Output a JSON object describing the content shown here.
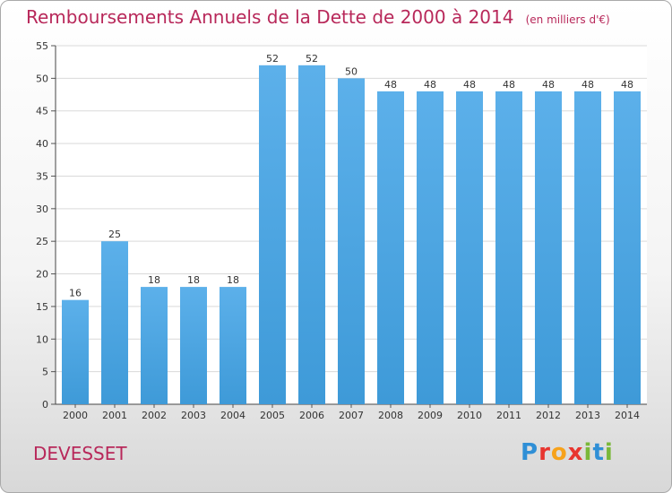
{
  "chart_data": {
    "type": "bar",
    "title": "Remboursements Annuels de la Dette de 2000 à 2014",
    "unit_note": "(en milliers d'€)",
    "categories": [
      "2000",
      "2001",
      "2002",
      "2003",
      "2004",
      "2005",
      "2006",
      "2007",
      "2008",
      "2009",
      "2010",
      "2011",
      "2012",
      "2013",
      "2014"
    ],
    "values": [
      16,
      25,
      18,
      18,
      18,
      52,
      52,
      50,
      48,
      48,
      48,
      48,
      48,
      48,
      48
    ],
    "ylim": [
      0,
      55
    ],
    "yticks": [
      0,
      5,
      10,
      15,
      20,
      25,
      30,
      35,
      40,
      45,
      50,
      55
    ],
    "grid": true,
    "bar_color": "#3e9ad8"
  },
  "footer": {
    "place": "DEVESSET",
    "logo_text": "Proxiti",
    "logo_colors": [
      "#2f8fd6",
      "#e8352f",
      "#f7a21b",
      "#e8352f",
      "#7ab83a",
      "#2f8fd6",
      "#7ab83a"
    ]
  },
  "colors": {
    "title": "#b8285a",
    "grid": "#d9d9d9"
  }
}
